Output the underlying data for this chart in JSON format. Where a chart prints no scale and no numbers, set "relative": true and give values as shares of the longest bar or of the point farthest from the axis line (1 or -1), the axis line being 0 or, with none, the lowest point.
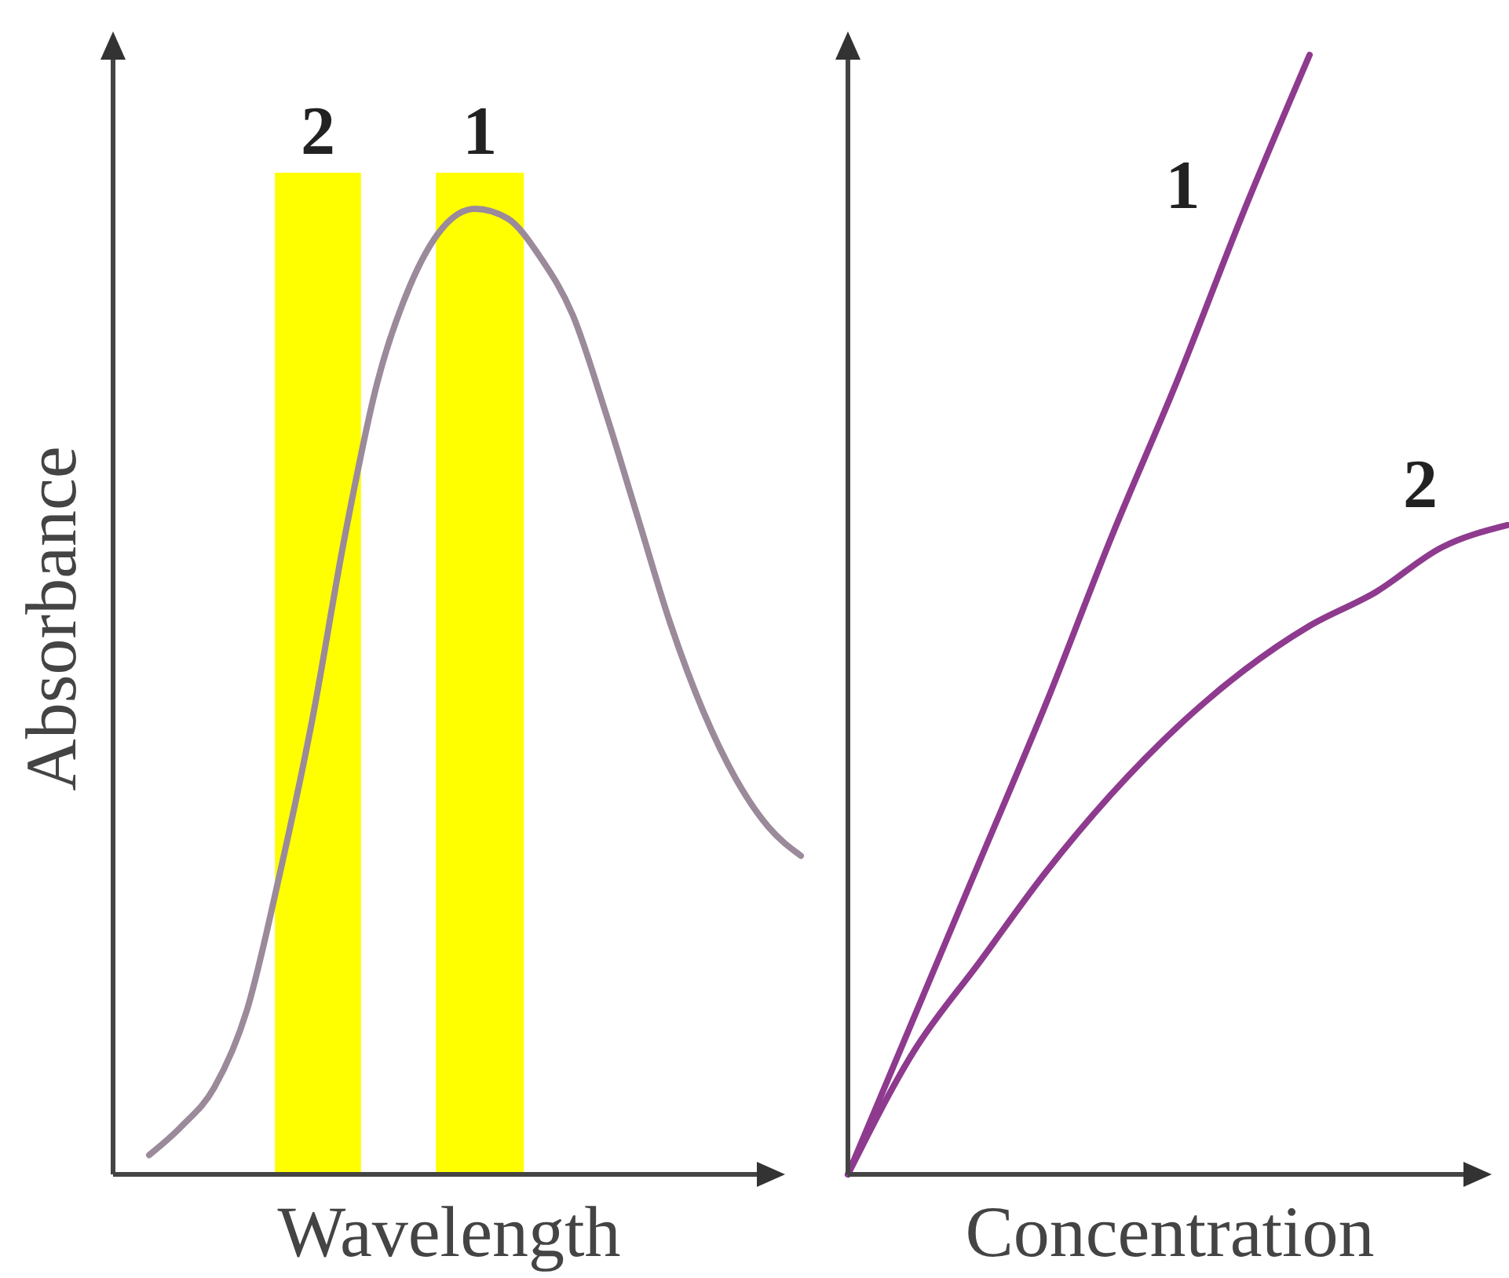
{
  "chart_data": [
    {
      "type": "line",
      "relative": true,
      "xlabel": "Wavelength",
      "ylabel": "Absorbance",
      "categories": [
        null,
        null,
        null,
        null,
        null,
        null,
        null,
        null,
        null,
        null,
        null,
        null,
        null,
        null,
        null,
        null,
        null,
        null,
        null,
        null,
        null
      ],
      "series": [
        {
          "color": "#9a8a9a",
          "values": [
            0.02,
            0.05,
            0.09,
            0.17,
            0.31,
            0.47,
            0.66,
            0.82,
            0.92,
            0.98,
            1.0,
            0.99,
            0.95,
            0.89,
            0.79,
            0.68,
            0.57,
            0.48,
            0.41,
            0.36,
            0.33
          ]
        }
      ],
      "annotations": [
        "2",
        "1"
      ]
    },
    {
      "type": "line",
      "relative": true,
      "xlabel": "Concentration",
      "categories": [
        null,
        null,
        null,
        null,
        null,
        null,
        null,
        null,
        null,
        null,
        null
      ],
      "series": [
        {
          "name": "1",
          "color": "#8e3a8e",
          "values": [
            0,
            0.14,
            0.28,
            0.42,
            0.57,
            0.71,
            0.86,
            1.0,
            null,
            null,
            null
          ]
        },
        {
          "name": "2",
          "color": "#8e3a8e",
          "values": [
            0,
            0.11,
            0.19,
            0.27,
            0.34,
            0.4,
            0.45,
            0.49,
            0.52,
            0.56,
            0.58
          ]
        }
      ]
    }
  ]
}
